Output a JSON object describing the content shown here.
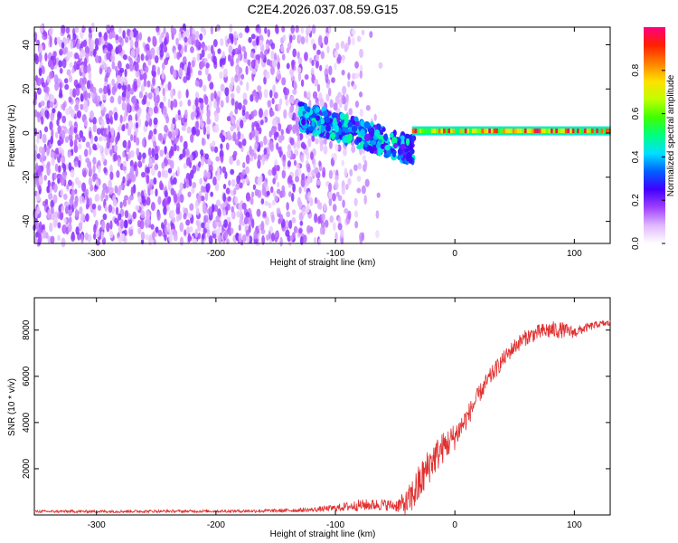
{
  "title": "C2E4.2026.037.08.59.G15",
  "chart_data": [
    {
      "type": "heatmap",
      "title": "C2E4.2026.037.08.59.G15",
      "xlabel": "Height of straight line (km)",
      "ylabel": "Frequency (Hz)",
      "xlim": [
        -352,
        130
      ],
      "ylim": [
        -50,
        48
      ],
      "xticks": [
        -300,
        -200,
        -100,
        0,
        100
      ],
      "yticks": [
        -40,
        -20,
        0,
        20,
        40
      ],
      "colorbar": {
        "label": "Normalized spectral amplitude",
        "range": [
          0.0,
          1.0
        ],
        "ticks": [
          0.0,
          0.2,
          0.4,
          0.6,
          0.8
        ],
        "colors": [
          "#ffffff",
          "#e0b8ff",
          "#a040ff",
          "#4000ff",
          "#0060ff",
          "#00e0ff",
          "#00ff80",
          "#40ff00",
          "#c0ff00",
          "#ffe000",
          "#ff8000",
          "#ff2000",
          "#ff0080"
        ]
      },
      "regions": [
        {
          "name": "noise",
          "x": [
            -352,
            -60
          ],
          "freq": [
            -50,
            48
          ],
          "amplitude": [
            0.05,
            0.2
          ]
        },
        {
          "name": "transition",
          "x": [
            -130,
            -35
          ],
          "freq_start": 8,
          "freq_end": -8,
          "amplitude": [
            0.2,
            0.5
          ]
        },
        {
          "name": "tone",
          "x": [
            -35,
            130
          ],
          "freq": 1,
          "amplitude": [
            0.5,
            1.0
          ]
        }
      ]
    },
    {
      "type": "line",
      "xlabel": "Height of straight line (km)",
      "ylabel": "SNR (10 * v/v)",
      "xlim": [
        -352,
        130
      ],
      "ylim": [
        0,
        9400
      ],
      "xticks": [
        -300,
        -200,
        -100,
        0,
        100
      ],
      "yticks": [
        2000,
        4000,
        6000,
        8000
      ],
      "series": [
        {
          "name": "SNR",
          "color": "#e03030",
          "x": [
            -352,
            -300,
            -250,
            -200,
            -150,
            -120,
            -100,
            -80,
            -60,
            -50,
            -40,
            -35,
            -30,
            -20,
            -10,
            0,
            10,
            20,
            30,
            40,
            50,
            60,
            70,
            80,
            90,
            100,
            110,
            120,
            130
          ],
          "y": [
            150,
            150,
            160,
            160,
            180,
            220,
            300,
            420,
            450,
            400,
            500,
            900,
            1300,
            2300,
            2900,
            3400,
            4200,
            5200,
            6000,
            6700,
            7300,
            7700,
            7900,
            8000,
            8000,
            7900,
            8100,
            8250,
            8300
          ],
          "noise": [
            60,
            60,
            60,
            60,
            80,
            100,
            150,
            250,
            250,
            250,
            600,
            800,
            900,
            800,
            700,
            600,
            500,
            400,
            400,
            350,
            350,
            350,
            350,
            400,
            350,
            250,
            200,
            150,
            150
          ]
        }
      ]
    }
  ]
}
